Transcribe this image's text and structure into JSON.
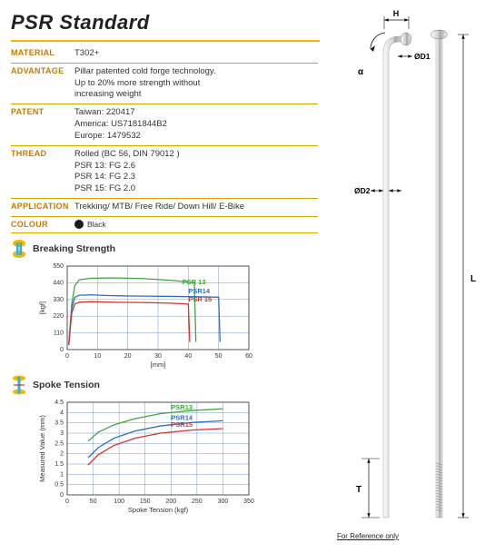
{
  "title": "PSR Standard",
  "specs": [
    {
      "label": "MATERIAL",
      "lines": [
        "T302+"
      ]
    },
    {
      "label": "ADVANTAGE",
      "lines": [
        "Pillar patented cold forge technology.",
        "Up to 20% more strength without",
        "increasing weight"
      ]
    },
    {
      "label": "PATENT",
      "lines": [
        "Taiwan: 220417",
        "America: US7181844B2",
        "Europe: 1479532"
      ]
    },
    {
      "label": "THREAD",
      "lines": [
        "Rolled (BC 56, DIN 79012 )",
        "PSR 13: FG 2.6",
        "PSR 14: FG 2.3",
        "PSR 15: FG 2.0"
      ]
    },
    {
      "label": "APPLICATION",
      "lines": [
        "Trekking/ MTB/ Free Ride/ Down Hill/ E-Bike"
      ]
    },
    {
      "label": "COLOUR",
      "lines": [
        "Black"
      ],
      "colour": true,
      "swatch": "#1a1a1a"
    }
  ],
  "breaking": {
    "title": "Breaking Strength",
    "icon_colors": {
      "outer": "#f5b800",
      "inner": "#2bb0e0"
    },
    "xlabel": "[mm]",
    "ylabel": "[kgf]",
    "xlim": [
      0,
      60
    ],
    "ylim": [
      0,
      550
    ],
    "xticks": [
      0,
      10,
      20,
      30,
      40,
      50,
      60
    ],
    "yticks": [
      0,
      110,
      220,
      330,
      440,
      550
    ],
    "grid_color": "#5a7fbf",
    "label_fontsize": 7,
    "series": [
      {
        "name": "PSR 13",
        "color": "#3fa63f",
        "label_x": 38,
        "label_y": 430,
        "points": [
          [
            0.5,
            30
          ],
          [
            1.5,
            300
          ],
          [
            2.5,
            420
          ],
          [
            4,
            460
          ],
          [
            8,
            470
          ],
          [
            15,
            472
          ],
          [
            25,
            468
          ],
          [
            35,
            455
          ],
          [
            42,
            440
          ],
          [
            42.5,
            50
          ]
        ]
      },
      {
        "name": "PSR14",
        "color": "#2f6fc2",
        "label_x": 40,
        "label_y": 370,
        "points": [
          [
            0.5,
            30
          ],
          [
            1.5,
            270
          ],
          [
            2.5,
            345
          ],
          [
            4,
            358
          ],
          [
            8,
            360
          ],
          [
            15,
            355
          ],
          [
            25,
            352
          ],
          [
            35,
            350
          ],
          [
            43,
            348
          ],
          [
            50,
            345
          ],
          [
            50.5,
            50
          ]
        ]
      },
      {
        "name": "PSR 15",
        "color": "#d0352f",
        "label_x": 40,
        "label_y": 318,
        "points": [
          [
            0.5,
            30
          ],
          [
            1.5,
            240
          ],
          [
            2.5,
            300
          ],
          [
            4,
            312
          ],
          [
            8,
            315
          ],
          [
            15,
            312
          ],
          [
            25,
            310
          ],
          [
            35,
            305
          ],
          [
            40,
            300
          ],
          [
            40.5,
            50
          ]
        ]
      }
    ]
  },
  "tension": {
    "title": "Spoke Tension",
    "icon_colors": {
      "outer": "#f5b800",
      "inner": "#2bb0e0"
    },
    "xlabel": "Spoke Tension (kgf)",
    "ylabel": "Measured Value (mm)",
    "xlim": [
      0,
      350
    ],
    "ylim": [
      0,
      4.5
    ],
    "xticks": [
      0,
      50,
      100,
      150,
      200,
      250,
      300,
      350
    ],
    "yticks": [
      0,
      0.5,
      1,
      1.5,
      2,
      2.5,
      3,
      3.5,
      4,
      4.5
    ],
    "grid_color": "#5a7fbf",
    "label_fontsize": 7,
    "series": [
      {
        "name": "PSR13",
        "color": "#3fa63f",
        "label_x": 200,
        "label_y": 4.15,
        "points": [
          [
            40,
            2.6
          ],
          [
            60,
            3.05
          ],
          [
            90,
            3.4
          ],
          [
            130,
            3.7
          ],
          [
            180,
            3.95
          ],
          [
            240,
            4.1
          ],
          [
            300,
            4.18
          ]
        ]
      },
      {
        "name": "PSR14",
        "color": "#2f6fc2",
        "label_x": 200,
        "label_y": 3.65,
        "points": [
          [
            40,
            1.8
          ],
          [
            60,
            2.3
          ],
          [
            90,
            2.75
          ],
          [
            130,
            3.1
          ],
          [
            180,
            3.35
          ],
          [
            240,
            3.52
          ],
          [
            300,
            3.6
          ]
        ]
      },
      {
        "name": "PSR15",
        "color": "#d0352f",
        "label_x": 200,
        "label_y": 3.3,
        "points": [
          [
            40,
            1.45
          ],
          [
            60,
            1.95
          ],
          [
            90,
            2.4
          ],
          [
            130,
            2.75
          ],
          [
            180,
            3.0
          ],
          [
            240,
            3.15
          ],
          [
            300,
            3.22
          ]
        ]
      }
    ]
  },
  "diagram": {
    "labels": {
      "H": "H",
      "D1": "ØD1",
      "a": "α",
      "D2": "ØD2",
      "L": "L",
      "T": "T"
    },
    "ref_note": "For Reference only",
    "colors": {
      "spoke_light": "#e4e4e4",
      "spoke_dark": "#9a9a9a",
      "line": "#111"
    }
  }
}
